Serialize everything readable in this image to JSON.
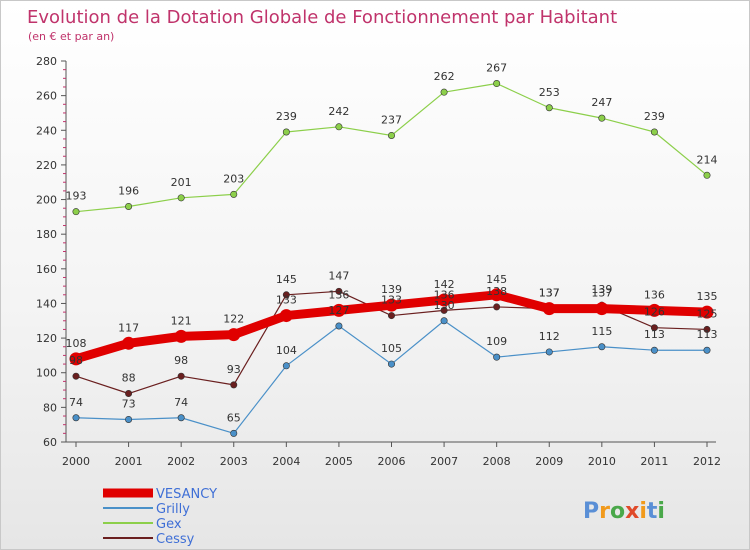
{
  "colors": {
    "VESANCY": "#e00000",
    "Grilly": "#4a90c8",
    "Gex": "#8ccf4a",
    "Cessy": "#6a1f1f",
    "title": "#c0336b",
    "legend_text": "#3f6fd6"
  },
  "logo": {
    "text": "Proxiti"
  },
  "chart_data": {
    "type": "line",
    "title": "Evolution de la Dotation Globale de Fonctionnement par Habitant",
    "subtitle": "(en € et par an)",
    "x": [
      "2000",
      "2001",
      "2002",
      "2003",
      "2004",
      "2005",
      "2006",
      "2007",
      "2008",
      "2009",
      "2010",
      "2011",
      "2012"
    ],
    "yticks": [
      "60",
      "80",
      "100",
      "120",
      "140",
      "160",
      "180",
      "200",
      "220",
      "240",
      "260",
      "280"
    ],
    "ylim": [
      60,
      280
    ],
    "grid": false,
    "legend_position": "bottom-left",
    "series": [
      {
        "name": "VESANCY",
        "values": [
          108,
          117,
          121,
          122,
          133,
          136,
          139,
          142,
          145,
          137,
          137,
          136,
          135
        ],
        "labels": [
          "108",
          "117",
          "121",
          "122",
          "133",
          "136",
          "139",
          "142",
          "145",
          "137",
          "137",
          "136",
          "135"
        ]
      },
      {
        "name": "Grilly",
        "values": [
          74,
          73,
          74,
          65,
          104,
          127,
          105,
          130,
          109,
          112,
          115,
          113,
          113
        ],
        "labels": [
          "74",
          "73",
          "74",
          "65",
          "104",
          "127",
          "105",
          "130",
          "109",
          "112",
          "115",
          "113",
          "113"
        ]
      },
      {
        "name": "Gex",
        "values": [
          193,
          196,
          201,
          203,
          239,
          242,
          237,
          262,
          267,
          253,
          247,
          239,
          214
        ],
        "labels": [
          "193",
          "196",
          "201",
          "203",
          "239",
          "242",
          "237",
          "262",
          "267",
          "253",
          "247",
          "239",
          "214"
        ]
      },
      {
        "name": "Cessy",
        "values": [
          98,
          88,
          98,
          93,
          145,
          147,
          133,
          136,
          138,
          137,
          139,
          126,
          125
        ],
        "labels": [
          "98",
          "88",
          "98",
          "93",
          "145",
          "147",
          "133",
          "136",
          "138",
          "137",
          "139",
          "126",
          "125"
        ]
      }
    ]
  }
}
